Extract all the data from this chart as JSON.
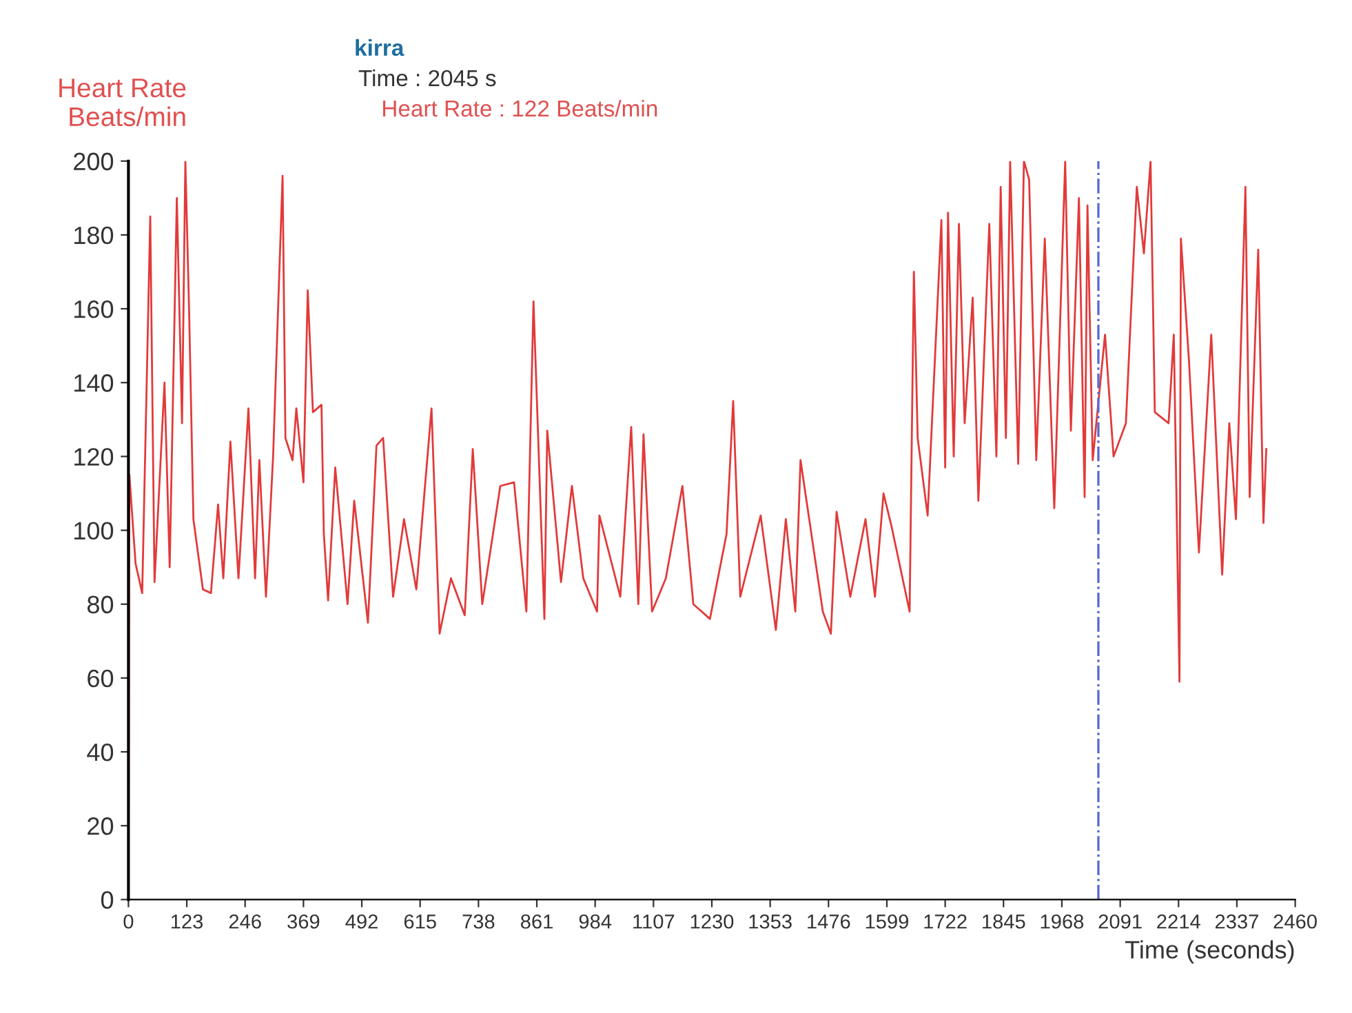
{
  "chart_data": {
    "type": "line",
    "ylabel": "Heart Rate\nBeats/min",
    "xlabel": "Time (seconds)",
    "annotations": [
      "kirra",
      "Time : 2045 s",
      "Heart Rate : 122 Beats/min"
    ],
    "xlim": [
      0,
      2460
    ],
    "xticks": [
      0,
      123,
      246,
      369,
      492,
      615,
      738,
      861,
      984,
      1107,
      1230,
      1353,
      1476,
      1599,
      1722,
      1845,
      1968,
      2091,
      2214,
      2337,
      2460
    ],
    "ylim": [
      0,
      200
    ],
    "yticks": [
      0,
      20,
      40,
      60,
      80,
      100,
      120,
      140,
      160,
      180,
      200
    ],
    "grid": false,
    "legend": false,
    "marker": "none",
    "line_style": "solid",
    "ref_lines": [
      {
        "axis": "x",
        "value": 2045,
        "label": null,
        "color": "#5a6ad0",
        "line_style": "dashdot"
      }
    ],
    "series": [
      {
        "color": "#e23a3a",
        "x": [
          0,
          2,
          15,
          29,
          46,
          55,
          76,
          87,
          102,
          113,
          120,
          128,
          137,
          157,
          174,
          189,
          200,
          215,
          232,
          253,
          267,
          276,
          290,
          305,
          325,
          331,
          346,
          354,
          369,
          378,
          389,
          407,
          412,
          421,
          436,
          462,
          476,
          505,
          523,
          537,
          558,
          581,
          607,
          639,
          656,
          680,
          709,
          726,
          746,
          784,
          813,
          839,
          854,
          877,
          883,
          912,
          935,
          959,
          988,
          993,
          1037,
          1060,
          1075,
          1086,
          1104,
          1133,
          1168,
          1191,
          1226,
          1261,
          1275,
          1290,
          1333,
          1365,
          1386,
          1406,
          1417,
          1464,
          1481,
          1493,
          1522,
          1554,
          1574,
          1592,
          1609,
          1647,
          1656,
          1664,
          1685,
          1714,
          1722,
          1728,
          1740,
          1751,
          1763,
          1780,
          1792,
          1815,
          1830,
          1839,
          1850,
          1859,
          1876,
          1888,
          1899,
          1914,
          1932,
          1952,
          1975,
          1987,
          2004,
          2016,
          2022,
          2033,
          2059,
          2077,
          2103,
          2126,
          2141,
          2155,
          2164,
          2193,
          2204,
          2216,
          2219,
          2236,
          2257,
          2283,
          2306,
          2321,
          2335,
          2355,
          2364,
          2382,
          2393,
          2399
        ],
        "values": [
          0,
          115,
          91,
          83,
          185,
          86,
          140,
          90,
          190,
          129,
          200,
          159,
          103,
          84,
          83,
          107,
          87,
          124,
          87,
          133,
          87,
          119,
          82,
          120,
          196,
          125,
          119,
          133,
          113,
          165,
          132,
          134,
          99,
          81,
          117,
          80,
          108,
          75,
          123,
          125,
          82,
          103,
          84,
          133,
          72,
          87,
          77,
          122,
          80,
          112,
          113,
          78,
          162,
          76,
          127,
          86,
          112,
          87,
          78,
          104,
          82,
          128,
          80,
          126,
          78,
          87,
          112,
          80,
          76,
          99,
          135,
          82,
          104,
          73,
          103,
          78,
          119,
          78,
          72,
          105,
          82,
          103,
          82,
          110,
          101,
          78,
          170,
          125,
          104,
          184,
          117,
          186,
          120,
          183,
          129,
          163,
          108,
          183,
          120,
          193,
          125,
          200,
          118,
          200,
          195,
          119,
          179,
          106,
          200,
          127,
          190,
          109,
          188,
          119,
          153,
          120,
          129,
          193,
          175,
          200,
          132,
          129,
          153,
          59,
          179,
          146,
          94,
          153,
          88,
          129,
          103,
          193,
          109,
          176,
          102,
          122
        ]
      }
    ]
  }
}
